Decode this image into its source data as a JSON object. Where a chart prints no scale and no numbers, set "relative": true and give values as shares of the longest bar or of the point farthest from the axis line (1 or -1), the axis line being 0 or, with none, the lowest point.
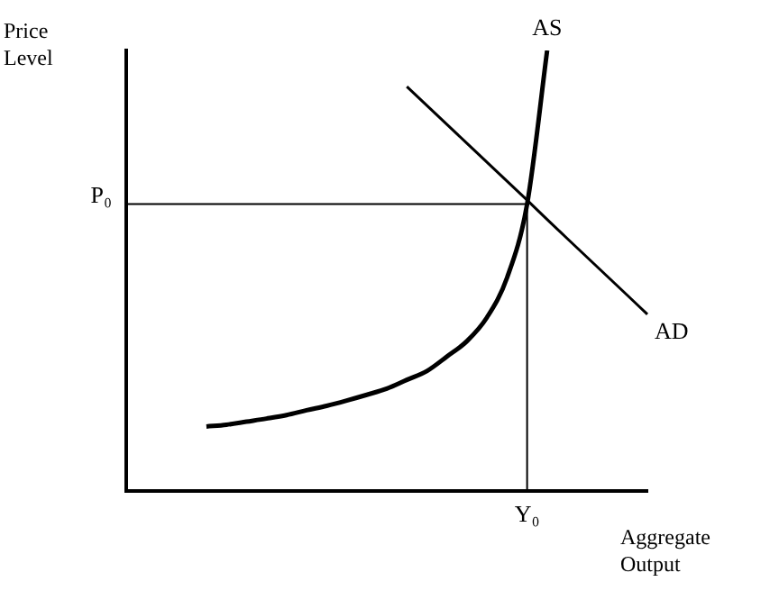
{
  "chart_data": {
    "type": "line",
    "relative": true,
    "xlabel": "Aggregate Output",
    "ylabel": "Price Level",
    "legend": false,
    "grid": false,
    "categories": [
      null,
      null,
      null,
      null,
      null,
      null,
      null,
      null,
      null,
      null,
      null,
      null,
      null,
      null,
      null,
      null,
      null,
      null,
      null,
      null,
      null,
      null,
      null,
      null,
      null,
      null,
      null
    ],
    "series": [
      {
        "name": "AS",
        "color": "#000000",
        "values": [
          null,
          null,
          null,
          null,
          0.146,
          0.15,
          0.157,
          0.164,
          0.172,
          0.183,
          0.193,
          0.205,
          0.218,
          0.232,
          0.252,
          0.272,
          0.305,
          0.34,
          0.394,
          0.484,
          0.651,
          1.0,
          null,
          null,
          null,
          null,
          null
        ]
      },
      {
        "name": "AD",
        "color": "#000000",
        "values": [
          null,
          null,
          null,
          null,
          null,
          null,
          null,
          null,
          null,
          null,
          null,
          null,
          null,
          null,
          0.918,
          0.875,
          0.832,
          0.789,
          0.746,
          0.703,
          0.66,
          0.616,
          0.573,
          0.53,
          0.487,
          0.444,
          0.401
        ]
      }
    ],
    "ref_lines": [
      {
        "axis": "y",
        "value": 0.651,
        "label": "P₀",
        "color": "#000000"
      },
      {
        "axis": "x",
        "label": "Y₀",
        "color": "#000000"
      }
    ]
  }
}
